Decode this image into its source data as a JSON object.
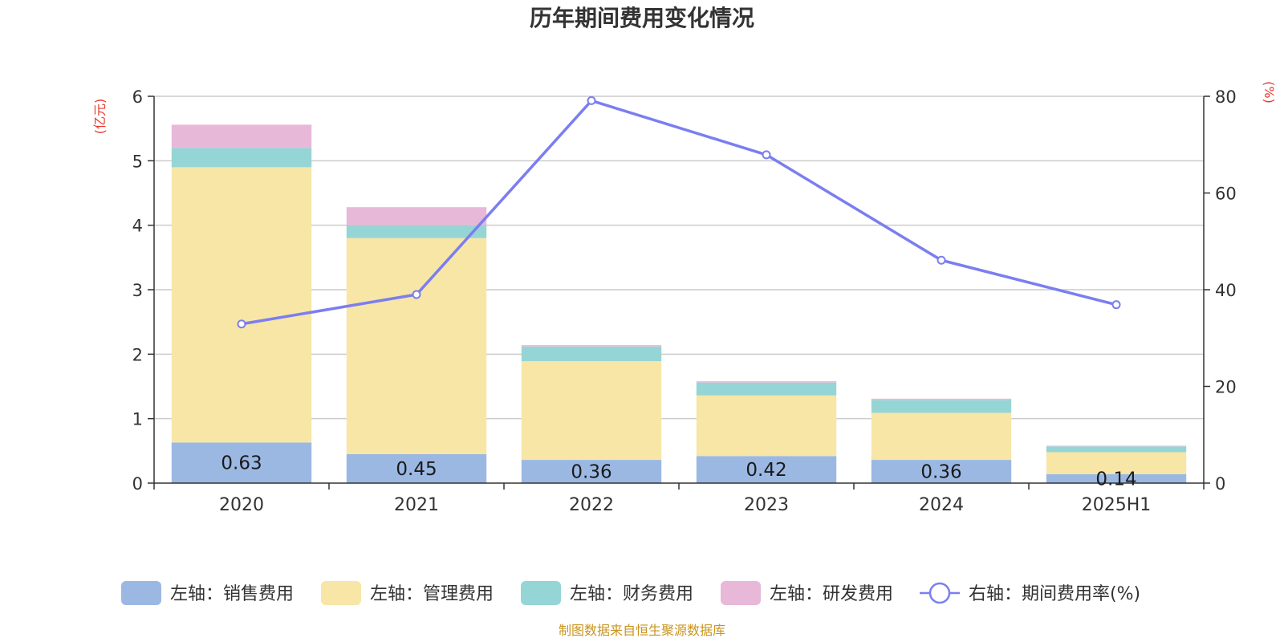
{
  "title": "历年期间费用变化情况",
  "source": "制图数据来自恒生聚源数据库",
  "chart_data": {
    "type": "bar",
    "categories": [
      "2020",
      "2021",
      "2022",
      "2023",
      "2024",
      "2025H1"
    ],
    "left_axis": {
      "unit": "(亿元)",
      "ylim": [
        0,
        6
      ],
      "ticks": [
        "0",
        "1",
        "2",
        "3",
        "4",
        "5",
        "6"
      ]
    },
    "right_axis": {
      "unit": "(%)",
      "ylim": [
        0,
        80
      ],
      "ticks": [
        "0",
        "20",
        "40",
        "60",
        "80"
      ]
    },
    "grid": true,
    "legend_position": "bottom",
    "stacked_series": [
      {
        "name": "左轴：销售费用",
        "color": "#9bb8e3",
        "values": [
          0.63,
          0.45,
          0.36,
          0.42,
          0.36,
          0.14
        ],
        "labels": [
          "0.63",
          "0.45",
          "0.36",
          "0.42",
          "0.36",
          "0.14"
        ]
      },
      {
        "name": "左轴：管理费用",
        "color": "#f7e6a6",
        "values": [
          4.27,
          3.35,
          1.53,
          0.94,
          0.73,
          0.34
        ]
      },
      {
        "name": "左轴：财务费用",
        "color": "#96d5d5",
        "values": [
          0.3,
          0.2,
          0.23,
          0.2,
          0.2,
          0.09
        ]
      },
      {
        "name": "左轴：研发费用",
        "color": "#e8b8d9",
        "values": [
          0.36,
          0.28,
          0.02,
          0.02,
          0.02,
          0.01
        ]
      }
    ],
    "line_series": {
      "name": "右轴：期间费用率(%)",
      "color": "#7b7ef0",
      "values": [
        32.9,
        39.0,
        79.1,
        67.9,
        46.1,
        36.9
      ]
    }
  }
}
